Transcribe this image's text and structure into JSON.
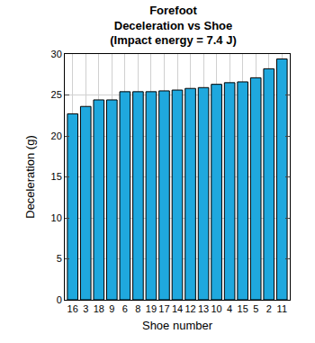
{
  "chart_data": {
    "type": "bar",
    "title": [
      "Forefoot",
      "Deceleration vs Shoe",
      "(Impact energy = 7.4 J)"
    ],
    "x_label": "Shoe number",
    "y_label": "Deceleration (g)",
    "categories": [
      "16",
      "3",
      "18",
      "9",
      "6",
      "8",
      "19",
      "17",
      "14",
      "12",
      "13",
      "10",
      "4",
      "15",
      "5",
      "2",
      "11"
    ],
    "values": [
      22.7,
      23.6,
      24.4,
      24.4,
      25.4,
      25.4,
      25.4,
      25.5,
      25.6,
      25.8,
      25.9,
      26.3,
      26.5,
      26.6,
      27.1,
      28.2,
      29.4
    ],
    "color": "#1fa8de",
    "ylim": [
      0,
      30
    ],
    "yticks": [
      0,
      5,
      10,
      15,
      20,
      25,
      30
    ],
    "grid": true
  }
}
